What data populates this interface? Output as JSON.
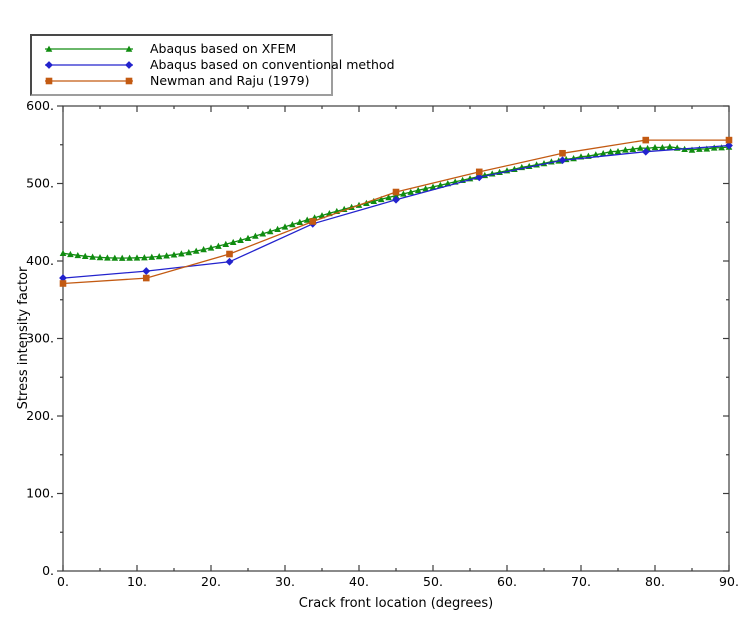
{
  "background_color": "#ffffff",
  "axis_color": "#3c3c3c",
  "text_color": "#000000",
  "legend": {
    "position": "top-left",
    "border_style": "gray-inset"
  },
  "chart_data": {
    "type": "line",
    "title": "",
    "xlabel": "Crack front location (degrees)",
    "ylabel": "Stress intensity factor",
    "xlim": [
      0,
      90
    ],
    "ylim": [
      0,
      600
    ],
    "grid": false,
    "legend_position": "top-left",
    "x_major_tick_values": [
      0,
      10,
      20,
      30,
      40,
      50,
      60,
      70,
      80,
      90
    ],
    "x_major_tick_labels": [
      "0.",
      "10.",
      "20.",
      "30.",
      "40.",
      "50.",
      "60.",
      "70.",
      "80.",
      "90."
    ],
    "x_minor_tick_values": [
      5,
      15,
      25,
      35,
      45,
      55,
      65,
      75,
      85
    ],
    "y_major_tick_values": [
      0,
      100,
      200,
      300,
      400,
      500,
      600
    ],
    "y_major_tick_labels": [
      "0.",
      "100.",
      "200.",
      "300.",
      "400.",
      "500.",
      "600."
    ],
    "y_minor_tick_values": [
      50,
      150,
      250,
      350,
      450,
      550
    ],
    "series": [
      {
        "name": "Abaqus based on XFEM",
        "color": "#108c10",
        "marker": "triangle",
        "x": [
          0,
          1,
          2,
          3,
          4,
          5,
          6,
          7,
          8,
          9,
          10,
          11,
          12,
          13,
          14,
          15,
          16,
          17,
          18,
          19,
          20,
          21,
          22,
          23,
          24,
          25,
          26,
          27,
          28,
          29,
          30,
          31,
          32,
          33,
          34,
          35,
          36,
          37,
          38,
          39,
          40,
          41,
          42,
          43,
          44,
          45,
          46,
          47,
          48,
          49,
          50,
          51,
          52,
          53,
          54,
          55,
          56,
          57,
          58,
          59,
          60,
          61,
          62,
          63,
          64,
          65,
          66,
          67,
          68,
          69,
          70,
          71,
          72,
          73,
          74,
          75,
          76,
          77,
          78,
          79,
          80,
          81,
          82,
          83,
          84,
          85,
          86,
          87,
          88,
          89,
          90
        ],
        "y": [
          410.0,
          408.6,
          407.3,
          406.2,
          405.3,
          404.6,
          404.1,
          403.9,
          403.8,
          403.9,
          404.1,
          404.5,
          405.1,
          405.9,
          406.9,
          408.1,
          409.5,
          411.1,
          412.9,
          414.9,
          417.0,
          419.3,
          421.7,
          424.2,
          426.8,
          429.5,
          432.3,
          435.2,
          438.1,
          441.1,
          444.1,
          447.1,
          450.1,
          453.0,
          455.9,
          458.7,
          461.5,
          464.2,
          466.9,
          469.5,
          472.1,
          474.6,
          477.1,
          479.6,
          482.0,
          484.3,
          486.6,
          488.9,
          491.2,
          493.4,
          495.6,
          497.8,
          500.0,
          502.2,
          504.3,
          506.4,
          508.5,
          510.6,
          512.6,
          514.6,
          516.6,
          518.5,
          520.9,
          522.3,
          524.3,
          525.9,
          528.2,
          529.3,
          531.2,
          532.4,
          534.6,
          535.4,
          537.2,
          538.8,
          541.0,
          541.5,
          543.4,
          544.3,
          545.8,
          545.4,
          546.6,
          546.5,
          547.4,
          545.9,
          544.3,
          543.3,
          544.5,
          544.7,
          546.1,
          546.3,
          547.1
        ]
      },
      {
        "name": "Abaqus based on conventional method",
        "color": "#2323cd",
        "marker": "diamond",
        "x": [
          0,
          11.25,
          22.5,
          33.75,
          45,
          56.25,
          67.5,
          78.75,
          90
        ],
        "y": [
          378,
          387,
          399,
          448,
          479,
          508,
          530,
          541,
          549
        ]
      },
      {
        "name": "Newman and Raju (1979)",
        "color": "#c35a12",
        "marker": "square",
        "x": [
          0,
          11.25,
          22.5,
          33.75,
          45,
          56.25,
          67.5,
          78.75,
          90
        ],
        "y": [
          371,
          378,
          409,
          451,
          489,
          515,
          539,
          556,
          556
        ]
      }
    ]
  }
}
